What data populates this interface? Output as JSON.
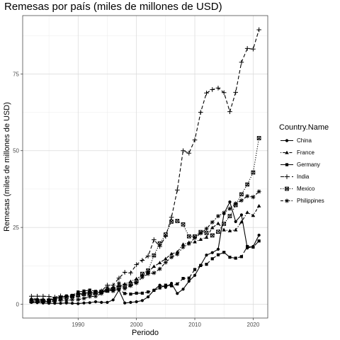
{
  "chart_data": {
    "type": "line",
    "title": "Remesas por país (miles de millones de USD)",
    "xlabel": "Periodo",
    "ylabel": "Remesas (miles de millones de USD)",
    "xlim": [
      1980.5,
      2022.5
    ],
    "ylim": [
      -4.5,
      94
    ],
    "xticks": [
      1990,
      2000,
      2010,
      2020
    ],
    "yticks": [
      0,
      25,
      50,
      75
    ],
    "grid": true,
    "legend_title": "Country.Name",
    "legend_position": "right",
    "x": [
      1982,
      1983,
      1984,
      1985,
      1986,
      1987,
      1988,
      1989,
      1990,
      1991,
      1992,
      1993,
      1994,
      1995,
      1996,
      1997,
      1998,
      1999,
      2000,
      2001,
      2002,
      2003,
      2004,
      2005,
      2006,
      2007,
      2008,
      2009,
      2010,
      2011,
      2012,
      2013,
      2014,
      2015,
      2016,
      2017,
      2018,
      2019,
      2020,
      2021
    ],
    "series": [
      {
        "name": "China",
        "marker": "circle",
        "dash": "solid",
        "values": [
          0.6,
          0.5,
          0.4,
          0.3,
          0.3,
          0.3,
          0.4,
          0.3,
          0.2,
          0.4,
          0.5,
          0.8,
          0.6,
          0.6,
          1.4,
          4.6,
          0.4,
          0.6,
          0.8,
          1.2,
          2.4,
          4.6,
          6.2,
          5.5,
          6.8,
          3.5,
          4.9,
          7.5,
          9.4,
          12.7,
          16.0,
          16.8,
          17.9,
          29.5,
          33.3,
          26.9,
          29.1,
          18.3,
          18.8,
          22.5
        ]
      },
      {
        "name": "France",
        "marker": "triangle",
        "dash": "dotdash",
        "values": [
          1.8,
          1.7,
          1.6,
          1.6,
          1.9,
          2.3,
          2.6,
          2.7,
          3.3,
          3.6,
          3.8,
          3.6,
          3.9,
          4.5,
          5.6,
          6.0,
          6.6,
          7.4,
          8.3,
          9.5,
          10.5,
          12.3,
          13.5,
          14.8,
          16.4,
          17.0,
          19.5,
          20.1,
          20.3,
          21.1,
          21.8,
          24.9,
          26.3,
          24.2,
          23.9,
          24.2,
          26.8,
          29.9,
          28.9,
          32.0
        ]
      },
      {
        "name": "Germany",
        "marker": "square",
        "dash": "longdash",
        "values": [
          1.5,
          1.4,
          1.3,
          1.4,
          1.8,
          2.3,
          2.7,
          2.9,
          4.0,
          4.3,
          4.6,
          4.2,
          3.8,
          4.3,
          4.6,
          4.8,
          3.5,
          3.3,
          3.6,
          3.6,
          4.0,
          4.5,
          5.3,
          6.2,
          6.0,
          6.6,
          8.4,
          8.5,
          11.3,
          12.6,
          13.0,
          14.8,
          16.1,
          16.9,
          15.3,
          15.0,
          15.5,
          18.8,
          18.6,
          20.6
        ]
      },
      {
        "name": "India",
        "marker": "plus",
        "dash": "dashed",
        "values": [
          2.6,
          2.6,
          2.6,
          2.5,
          2.3,
          2.7,
          2.4,
          2.4,
          2.4,
          3.3,
          2.9,
          3.4,
          4.3,
          6.2,
          6.2,
          8.5,
          10.4,
          10.2,
          12.9,
          14.3,
          15.7,
          21.0,
          18.8,
          22.1,
          28.3,
          37.2,
          50.0,
          49.2,
          53.5,
          62.5,
          68.8,
          69.9,
          70.4,
          68.9,
          62.7,
          69.0,
          78.8,
          83.3,
          83.1,
          89.4
        ]
      },
      {
        "name": "Mexico",
        "marker": "boxx",
        "dash": "dotted",
        "values": [
          1.0,
          1.1,
          1.1,
          1.2,
          1.5,
          1.9,
          2.2,
          2.6,
          3.1,
          3.3,
          3.6,
          3.8,
          4.1,
          4.4,
          4.9,
          5.5,
          6.0,
          6.6,
          7.5,
          9.9,
          11.0,
          15.9,
          19.8,
          22.7,
          26.9,
          27.1,
          26.0,
          22.1,
          22.1,
          23.5,
          23.2,
          22.4,
          23.6,
          26.2,
          28.7,
          32.3,
          35.8,
          39.0,
          42.9,
          54.1
        ]
      },
      {
        "name": "Philippines",
        "marker": "asterisk",
        "dash": "twodash",
        "values": [
          0.8,
          0.9,
          0.9,
          0.9,
          1.0,
          1.3,
          1.2,
          1.5,
          1.5,
          1.9,
          2.5,
          2.6,
          3.5,
          5.4,
          4.3,
          6.8,
          5.1,
          6.0,
          6.9,
          8.8,
          9.9,
          10.2,
          11.5,
          13.6,
          15.3,
          16.3,
          18.6,
          19.7,
          21.6,
          23.1,
          24.6,
          26.7,
          28.7,
          29.8,
          31.1,
          32.8,
          33.8,
          35.2,
          34.9,
          36.7
        ]
      }
    ]
  }
}
